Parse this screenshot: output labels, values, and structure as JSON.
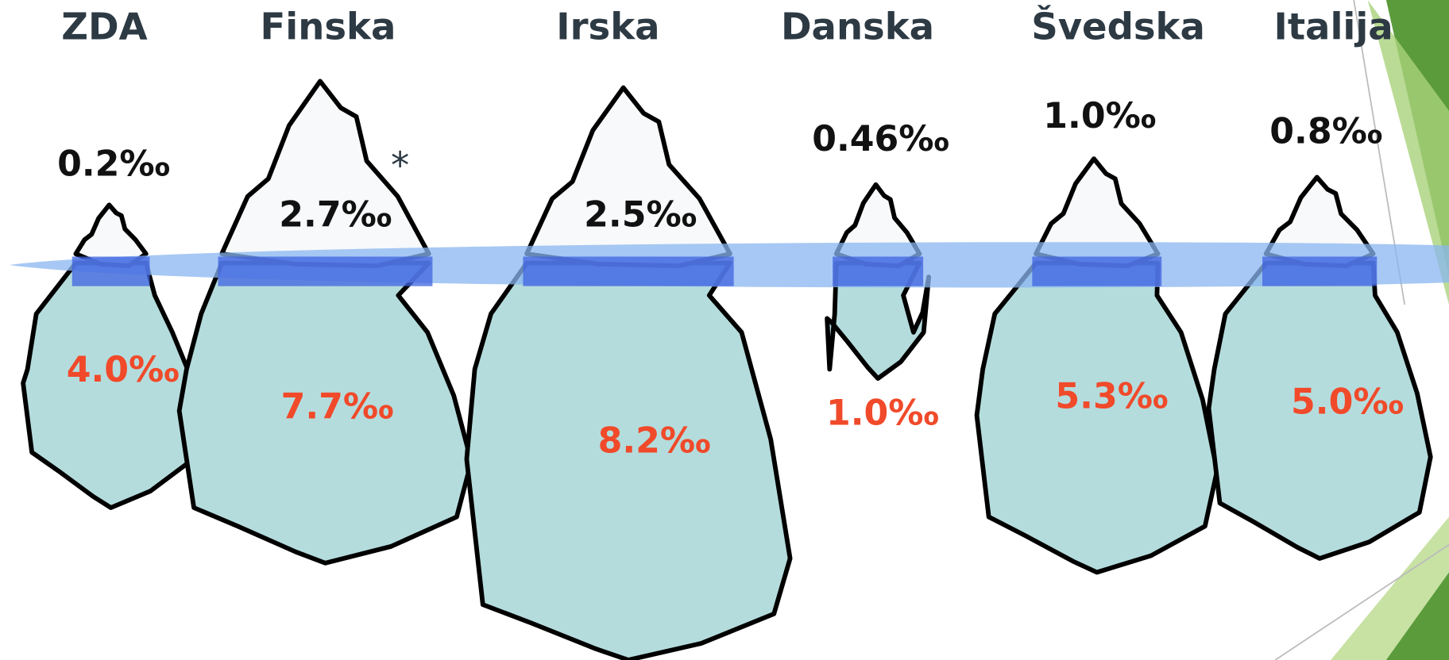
{
  "countries": [
    {
      "name": "ZDA",
      "above": "0.2‰",
      "below": "4.0‰"
    },
    {
      "name": "Finska",
      "above": "2.7‰",
      "below": "7.7‰",
      "note": "*"
    },
    {
      "name": "Irska",
      "above": "2.5‰",
      "below": "8.2‰"
    },
    {
      "name": "Danska",
      "above": "0.46‰",
      "below": "1.0‰"
    },
    {
      "name": "Švedska",
      "above": "1.0‰",
      "below": "5.3‰"
    },
    {
      "name": "Italija",
      "above": "0.8‰",
      "below": "5.0‰"
    }
  ]
}
